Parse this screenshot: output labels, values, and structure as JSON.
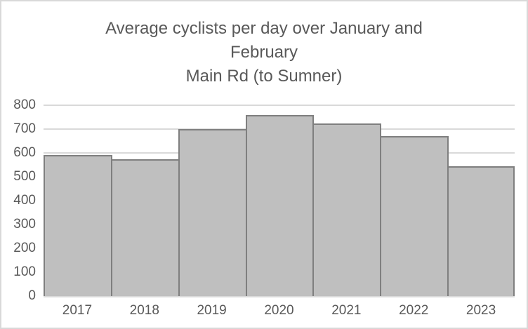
{
  "chart_data": {
    "type": "bar",
    "title": "Average cyclists per day over January and February\nMain Rd (to Sumner)",
    "title_lines": [
      "Average cyclists per day over January and",
      "February",
      "Main Rd (to Sumner)"
    ],
    "categories": [
      "2017",
      "2018",
      "2019",
      "2020",
      "2021",
      "2022",
      "2023"
    ],
    "values": [
      590,
      575,
      700,
      760,
      725,
      670,
      545
    ],
    "xlabel": "",
    "ylabel": "",
    "ylim": [
      0,
      800
    ],
    "y_ticks": [
      0,
      100,
      200,
      300,
      400,
      500,
      600,
      700,
      800
    ],
    "grid": true,
    "legend": false,
    "bar_gap": "none",
    "colors": {
      "bar_fill": "#bfbfbf",
      "bar_border": "#7f7f7f",
      "gridline": "#d9d9d9",
      "axis_line": "#d9d9d9",
      "text": "#595959",
      "chart_border": "#d9d9d9",
      "background": "#ffffff"
    }
  }
}
